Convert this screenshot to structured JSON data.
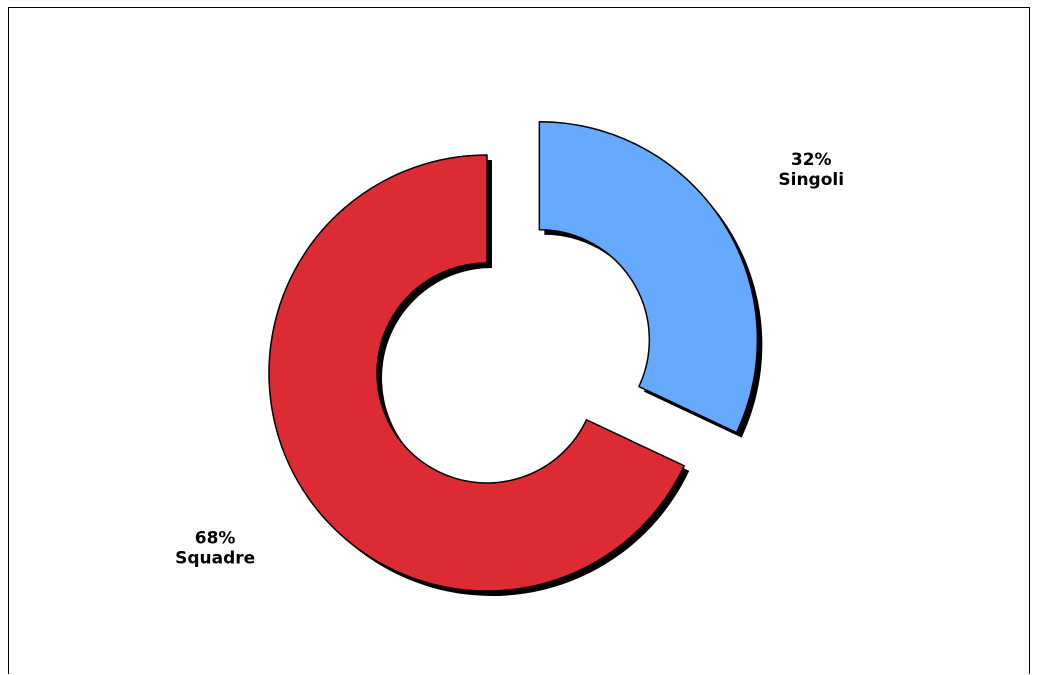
{
  "chart_data": {
    "type": "pie",
    "variant": "donut-exploded",
    "slices": [
      {
        "label": "Singoli",
        "percent_text": "32%",
        "value": 32,
        "color": "#66aaff",
        "exploded": true
      },
      {
        "label": "Squadre",
        "percent_text": "68%",
        "value": 68,
        "color": "#dd2b33",
        "exploded": false
      }
    ],
    "start_angle_deg": -90,
    "direction": "clockwise",
    "shadow": true,
    "outline_color": "#000000"
  }
}
